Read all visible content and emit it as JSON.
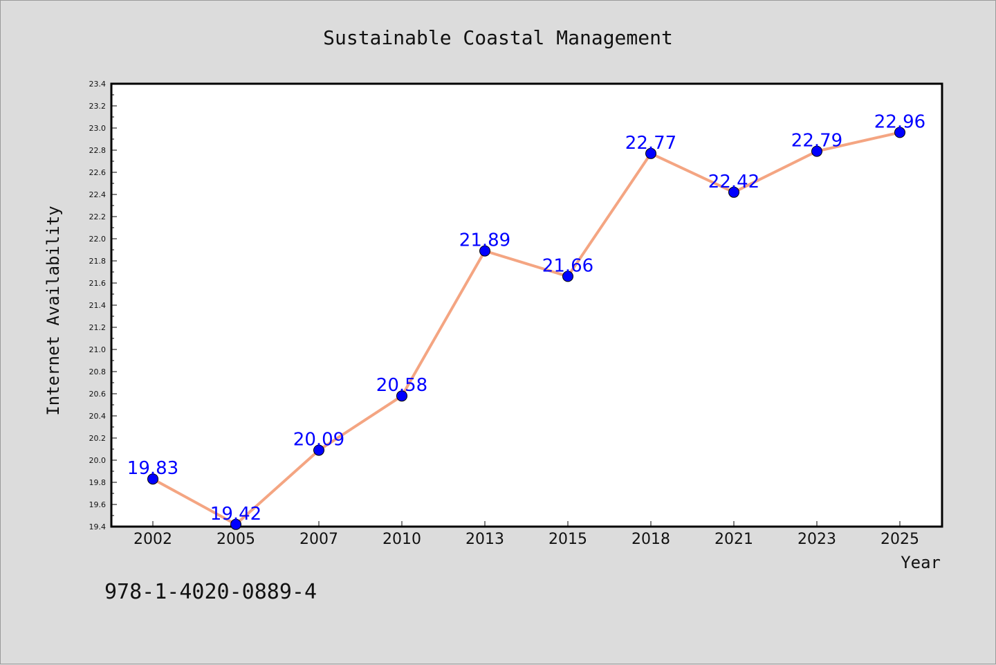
{
  "chart_data": {
    "type": "line",
    "title": "Sustainable Coastal Management",
    "xlabel": "Year",
    "ylabel": "Internet Availability",
    "categories": [
      "2002",
      "2005",
      "2007",
      "2010",
      "2013",
      "2015",
      "2018",
      "2021",
      "2023",
      "2025"
    ],
    "series": [
      {
        "values": [
          19.83,
          19.42,
          20.09,
          20.58,
          21.89,
          21.66,
          22.77,
          22.42,
          22.79,
          22.96
        ],
        "line_color": "#f4a582",
        "marker_color": "#0000ff"
      }
    ],
    "data_labels": [
      "19.83",
      "19.42",
      "20.09",
      "20.58",
      "21.89",
      "21.66",
      "22.77",
      "22.42",
      "22.79",
      "22.96"
    ],
    "ylim": [
      19.4,
      23.4
    ],
    "yticks": [
      "19.4",
      "19.6",
      "19.8",
      "20.0",
      "20.2",
      "20.4",
      "20.6",
      "20.8",
      "21.0",
      "21.2",
      "21.4",
      "21.6",
      "21.8",
      "22.0",
      "22.2",
      "22.4",
      "22.6",
      "22.8",
      "23.0",
      "23.2",
      "23.4"
    ],
    "grid": false,
    "legend": "none"
  },
  "footnote": "978-1-4020-0889-4",
  "colors": {
    "background": "#dcdcdc",
    "plot_background": "#ffffff",
    "line": "#f4a582",
    "marker": "#0000ff",
    "label": "#0000ff"
  }
}
